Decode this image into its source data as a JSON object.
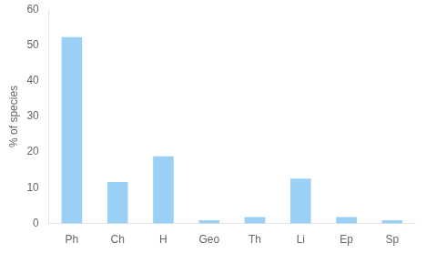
{
  "chart_data": {
    "type": "bar",
    "categories": [
      "Ph",
      "Ch",
      "H",
      "Geo",
      "Th",
      "Li",
      "Ep",
      "Sp"
    ],
    "values": [
      52.2,
      11.6,
      18.8,
      0.9,
      1.8,
      12.6,
      1.8,
      0.9
    ],
    "ylabel": "% of species",
    "ylim": [
      0,
      60
    ],
    "yticks": [
      0,
      10,
      20,
      30,
      40,
      50,
      60
    ],
    "grid": false
  }
}
